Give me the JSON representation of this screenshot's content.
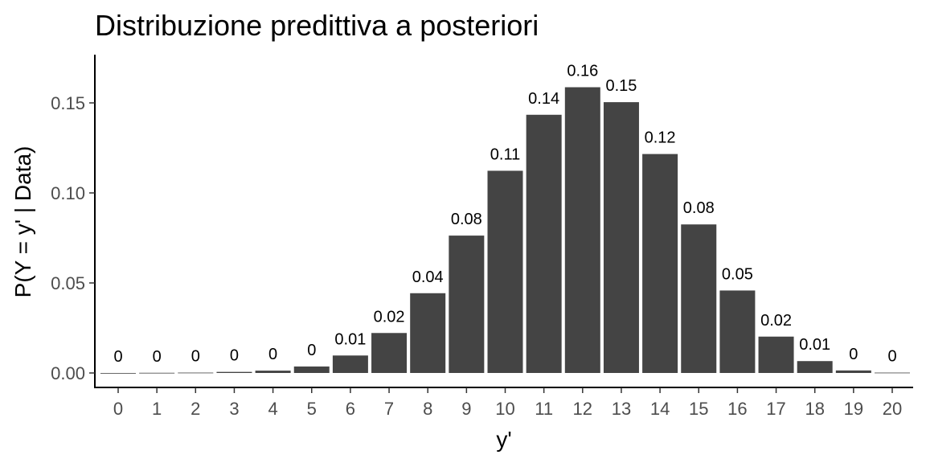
{
  "chart_data": {
    "type": "bar",
    "title": "Distribuzione predittiva a posteriori",
    "xlabel": "y'",
    "ylabel": "P(Y = y' | Data)",
    "categories": [
      "0",
      "1",
      "2",
      "3",
      "4",
      "5",
      "6",
      "7",
      "8",
      "9",
      "10",
      "11",
      "12",
      "13",
      "14",
      "15",
      "16",
      "17",
      "18",
      "19",
      "20"
    ],
    "values": [
      0.0,
      0.0001,
      0.0002,
      0.0006,
      0.0013,
      0.0036,
      0.0097,
      0.0222,
      0.0443,
      0.0763,
      0.1123,
      0.1434,
      0.1587,
      0.1504,
      0.1216,
      0.0825,
      0.0458,
      0.0202,
      0.0066,
      0.0014,
      0.0002
    ],
    "labels": [
      "0",
      "0",
      "0",
      "0",
      "0",
      "0",
      "0.01",
      "0.02",
      "0.04",
      "0.08",
      "0.11",
      "0.14",
      "0.16",
      "0.15",
      "0.12",
      "0.08",
      "0.05",
      "0.02",
      "0.01",
      "0",
      "0"
    ],
    "yticks": [
      "0.00",
      "0.05",
      "0.10",
      "0.15"
    ],
    "ytick_values": [
      0,
      0.05,
      0.1,
      0.15
    ],
    "ylim": [
      0,
      0.1763
    ],
    "bar_color": "#444444",
    "grid": false,
    "legend": "none"
  }
}
